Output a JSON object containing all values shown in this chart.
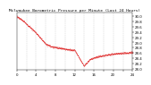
{
  "title": "Milwaukee Barometric Pressure per Minute (Last 24 Hours)",
  "ylim": [
    27.95,
    30.15
  ],
  "xlim": [
    0,
    1440
  ],
  "background_color": "#ffffff",
  "plot_bg_color": "#ffffff",
  "line_color": "#dd0000",
  "grid_color": "#bbbbbb",
  "title_color": "#000000",
  "tick_label_color": "#000000",
  "ytick_vals": [
    30.0,
    29.8,
    29.6,
    29.4,
    29.2,
    29.0,
    28.8,
    28.6,
    28.4,
    28.2,
    28.0
  ],
  "title_fontsize": 3.2,
  "tick_fontsize": 2.8,
  "linewidth": 0.6
}
